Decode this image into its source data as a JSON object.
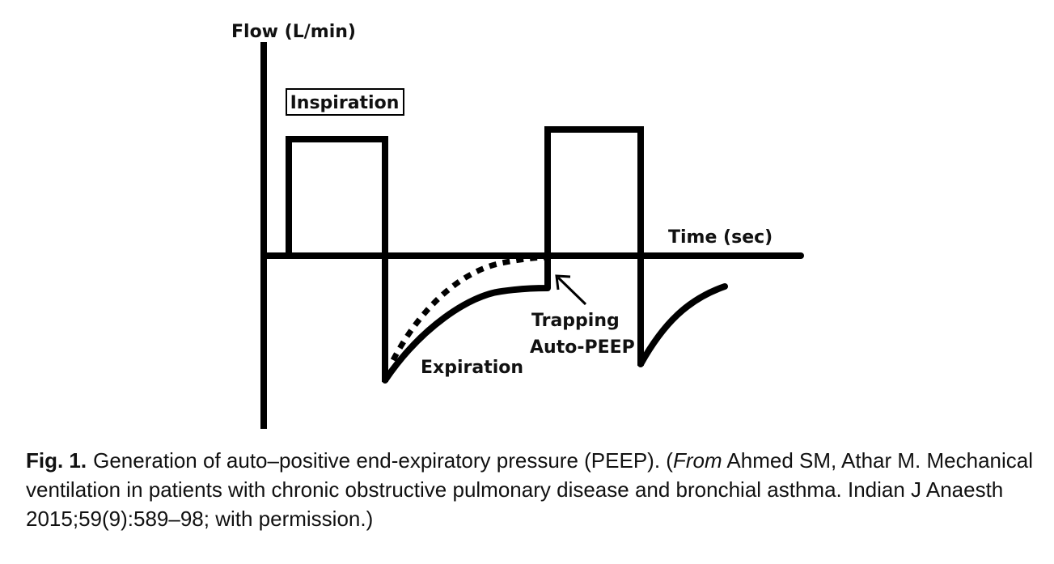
{
  "diagram": {
    "y_axis_label": "Flow (L/min)",
    "x_axis_label": "Time (sec)",
    "inspiration_label": "Inspiration",
    "expiration_label": "Expiration",
    "trapping_label": "Trapping",
    "autopeep_label": "Auto-PEEP",
    "line_color": "#000000"
  },
  "caption": {
    "figure_number": "Fig. 1.",
    "lead_text": "Generation of auto–positive end-expiratory pressure (PEEP). (",
    "source_word": "From",
    "citation": " Ahmed SM, Athar M. Mechanical ventilation in patients with chronic obstructive pulmonary disease and bronchial asthma. Indian J Anaesth 2015;59(9):589–98; with permission.)"
  }
}
